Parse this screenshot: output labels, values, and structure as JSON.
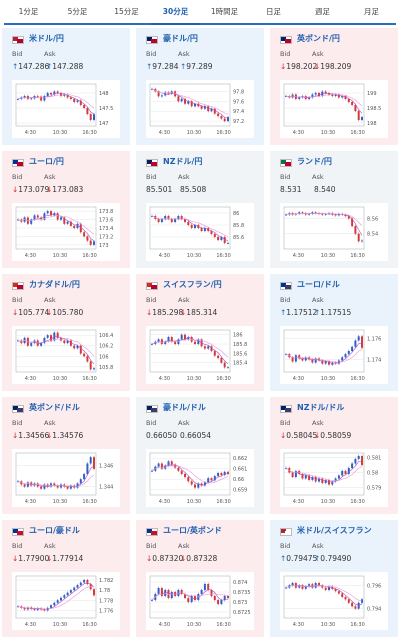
{
  "tabs": [
    {
      "label": "1分足",
      "active": false
    },
    {
      "label": "5分足",
      "active": false
    },
    {
      "label": "15分足",
      "active": false
    },
    {
      "label": "30分足",
      "active": true
    },
    {
      "label": "1時間足",
      "active": false
    },
    {
      "label": "日足",
      "active": false
    },
    {
      "label": "週足",
      "active": false
    },
    {
      "label": "月足",
      "active": false
    }
  ],
  "labels": {
    "bid": "Bid",
    "ask": "Ask"
  },
  "colors": {
    "accent": "#1f5fb0",
    "up_bg": "#eaf3fb",
    "down_bg": "#fdecee",
    "flat_bg": "#f1f4f6",
    "up_arrow": "#1f5fb0",
    "down_arrow": "#cc2a2a"
  },
  "cards": [
    {
      "pair": "米ドル/円",
      "flag": "us-jp",
      "trend": "up",
      "bid": "147.286",
      "ask": "147.288",
      "chart_data": {
        "type": "line",
        "x_ticks": [
          "4:30",
          "10:30",
          "16:30"
        ],
        "y_ticks": [
          "148",
          "147.5",
          "147"
        ],
        "y_range": [
          146.9,
          148.3
        ],
        "values": [
          147.8,
          147.85,
          147.9,
          147.8,
          147.82,
          147.9,
          147.88,
          147.75,
          147.9,
          148.0,
          147.95,
          148.05,
          148.0,
          147.9,
          147.95,
          147.85,
          147.8,
          147.7,
          147.75,
          147.6,
          147.5,
          147.3,
          147.1,
          147.29
        ]
      }
    },
    {
      "pair": "豪ドル/円",
      "flag": "au-jp",
      "trend": "up",
      "bid": "97.284",
      "ask": "97.289",
      "chart_data": {
        "type": "line",
        "x_ticks": [
          "4:30",
          "10:30",
          "16:30"
        ],
        "y_ticks": [
          "97.8",
          "97.6",
          "97.4",
          "97.2"
        ],
        "y_range": [
          97.1,
          97.95
        ],
        "values": [
          97.85,
          97.8,
          97.7,
          97.72,
          97.78,
          97.75,
          97.8,
          97.7,
          97.6,
          97.65,
          97.55,
          97.6,
          97.5,
          97.55,
          97.5,
          97.45,
          97.5,
          97.4,
          97.45,
          97.35,
          97.3,
          97.25,
          97.2,
          97.28
        ]
      }
    },
    {
      "pair": "英ポンド/円",
      "flag": "gb-jp",
      "trend": "down",
      "bid": "198.202",
      "ask": "198.209",
      "chart_data": {
        "type": "line",
        "x_ticks": [
          "4:30",
          "10:30",
          "16:30"
        ],
        "y_ticks": [
          "199",
          "198.5",
          "198"
        ],
        "y_range": [
          197.9,
          199.3
        ],
        "values": [
          198.9,
          198.85,
          198.95,
          198.8,
          198.85,
          198.9,
          198.8,
          198.85,
          198.95,
          199.0,
          198.9,
          199.05,
          199.0,
          198.95,
          198.9,
          198.95,
          198.85,
          198.9,
          198.8,
          198.7,
          198.6,
          198.4,
          198.1,
          198.2
        ]
      }
    },
    {
      "pair": "ユーロ/円",
      "flag": "eu-jp",
      "trend": "down",
      "bid": "173.079",
      "ask": "173.083",
      "chart_data": {
        "type": "line",
        "x_ticks": [
          "4:30",
          "10:30",
          "16:30"
        ],
        "y_ticks": [
          "173.8",
          "173.6",
          "173.4",
          "173.2",
          "173"
        ],
        "y_range": [
          172.9,
          173.9
        ],
        "values": [
          173.6,
          173.55,
          173.65,
          173.5,
          173.6,
          173.7,
          173.65,
          173.6,
          173.75,
          173.8,
          173.7,
          173.75,
          173.6,
          173.65,
          173.5,
          173.55,
          173.45,
          173.4,
          173.5,
          173.3,
          173.2,
          173.1,
          173.0,
          173.08
        ]
      }
    },
    {
      "pair": "NZドル/円",
      "flag": "nz-jp",
      "trend": "flat",
      "bid": "85.501",
      "ask": "85.508",
      "chart_data": {
        "type": "line",
        "x_ticks": [
          "4:30",
          "10:30",
          "16:30"
        ],
        "y_ticks": [
          "86",
          "85.8",
          "85.6"
        ],
        "y_range": [
          85.4,
          86.1
        ],
        "values": [
          85.95,
          85.9,
          85.85,
          85.9,
          85.95,
          85.9,
          85.85,
          85.9,
          85.95,
          85.9,
          85.85,
          85.8,
          85.75,
          85.8,
          85.75,
          85.7,
          85.75,
          85.7,
          85.65,
          85.6,
          85.55,
          85.6,
          85.5,
          85.5
        ]
      }
    },
    {
      "pair": "ランド/円",
      "flag": "za-jp",
      "trend": "flat",
      "bid": "8.531",
      "ask": "8.540",
      "chart_data": {
        "type": "line",
        "x_ticks": [
          "4:30",
          "10:30",
          "16:30"
        ],
        "y_ticks": [
          "8.56",
          "8.54"
        ],
        "y_range": [
          8.52,
          8.575
        ],
        "values": [
          8.565,
          8.567,
          8.565,
          8.566,
          8.568,
          8.567,
          8.565,
          8.566,
          8.568,
          8.567,
          8.566,
          8.565,
          8.566,
          8.567,
          8.565,
          8.564,
          8.566,
          8.565,
          8.563,
          8.56,
          8.55,
          8.54,
          8.53,
          8.531
        ]
      }
    },
    {
      "pair": "カナダドル/円",
      "flag": "ca-jp",
      "trend": "down",
      "bid": "105.774",
      "ask": "105.780",
      "chart_data": {
        "type": "line",
        "x_ticks": [
          "4:30",
          "10:30",
          "16:30"
        ],
        "y_ticks": [
          "106.4",
          "106.2",
          "106",
          "105.8"
        ],
        "y_range": [
          105.7,
          106.5
        ],
        "values": [
          106.3,
          106.25,
          106.35,
          106.2,
          106.25,
          106.3,
          106.2,
          106.25,
          106.35,
          106.4,
          106.3,
          106.45,
          106.35,
          106.3,
          106.25,
          106.3,
          106.2,
          106.15,
          106.2,
          106.05,
          106.0,
          105.9,
          105.75,
          105.77
        ]
      }
    },
    {
      "pair": "スイスフラン/円",
      "flag": "ch-jp",
      "trend": "down",
      "bid": "185.298",
      "ask": "185.314",
      "chart_data": {
        "type": "line",
        "x_ticks": [
          "4:30",
          "10:30",
          "16:30"
        ],
        "y_ticks": [
          "186",
          "185.8",
          "185.6",
          "185.4"
        ],
        "y_range": [
          185.2,
          186.1
        ],
        "values": [
          185.8,
          185.85,
          185.9,
          185.8,
          185.85,
          185.95,
          185.85,
          185.8,
          185.9,
          186.0,
          185.9,
          185.95,
          185.85,
          185.8,
          185.9,
          185.75,
          185.7,
          185.75,
          185.65,
          185.55,
          185.5,
          185.4,
          185.3,
          185.3
        ]
      }
    },
    {
      "pair": "ユーロ/ドル",
      "flag": "eu-us",
      "trend": "up",
      "bid": "1.17512",
      "ask": "1.17515",
      "chart_data": {
        "type": "line",
        "x_ticks": [
          "4:30",
          "10:30",
          "16:30"
        ],
        "y_ticks": [
          "1.176",
          "1.174"
        ],
        "y_range": [
          1.1728,
          1.1768
        ],
        "values": [
          1.1745,
          1.1742,
          1.1738,
          1.1744,
          1.1741,
          1.1739,
          1.1742,
          1.174,
          1.1737,
          1.1741,
          1.1739,
          1.1736,
          1.1738,
          1.1735,
          1.1737,
          1.1736,
          1.1739,
          1.1742,
          1.1745,
          1.1748,
          1.1752,
          1.1758,
          1.1762,
          1.1751
        ]
      }
    },
    {
      "pair": "英ポンド/ドル",
      "flag": "gb-us",
      "trend": "down",
      "bid": "1.34566",
      "ask": "1.34576",
      "chart_data": {
        "type": "line",
        "x_ticks": [
          "4:30",
          "10:30",
          "16:30"
        ],
        "y_ticks": [
          "1.346",
          "1.344"
        ],
        "y_range": [
          1.3432,
          1.3472
        ],
        "values": [
          1.3445,
          1.3442,
          1.344,
          1.3444,
          1.3441,
          1.3443,
          1.344,
          1.3438,
          1.3442,
          1.344,
          1.3443,
          1.3441,
          1.3439,
          1.3442,
          1.344,
          1.3438,
          1.3441,
          1.3439,
          1.3443,
          1.3447,
          1.3452,
          1.3462,
          1.3468,
          1.3457
        ]
      }
    },
    {
      "pair": "豪ドル/ドル",
      "flag": "au-us",
      "trend": "flat",
      "bid": "0.66050",
      "ask": "0.66054",
      "chart_data": {
        "type": "line",
        "x_ticks": [
          "4:30",
          "10:30",
          "16:30"
        ],
        "y_ticks": [
          "0.662",
          "0.661",
          "0.66",
          "0.659"
        ],
        "y_range": [
          0.6585,
          0.6625
        ],
        "values": [
          0.6608,
          0.6612,
          0.6615,
          0.661,
          0.6613,
          0.6617,
          0.6614,
          0.6611,
          0.6608,
          0.6605,
          0.6602,
          0.6598,
          0.6595,
          0.6592,
          0.6596,
          0.6594,
          0.6597,
          0.6601,
          0.6599,
          0.6603,
          0.6606,
          0.6604,
          0.6607,
          0.6605
        ]
      }
    },
    {
      "pair": "NZドル/ドル",
      "flag": "nz-us",
      "trend": "down",
      "bid": "0.58045",
      "ask": "0.58059",
      "chart_data": {
        "type": "line",
        "x_ticks": [
          "4:30",
          "10:30",
          "16:30"
        ],
        "y_ticks": [
          "0.581",
          "0.58",
          "0.579"
        ],
        "y_range": [
          0.5785,
          0.5813
        ],
        "values": [
          0.5803,
          0.58,
          0.5797,
          0.5801,
          0.5799,
          0.5796,
          0.5798,
          0.5795,
          0.5797,
          0.5794,
          0.5796,
          0.5793,
          0.5795,
          0.5792,
          0.5794,
          0.5796,
          0.5798,
          0.5801,
          0.5799,
          0.5803,
          0.5806,
          0.5809,
          0.5811,
          0.5805
        ]
      }
    },
    {
      "pair": "ユーロ/豪ドル",
      "flag": "eu-au",
      "trend": "down",
      "bid": "1.77900",
      "ask": "1.77914",
      "chart_data": {
        "type": "line",
        "x_ticks": [
          "4:30",
          "10:30",
          "16:30"
        ],
        "y_ticks": [
          "1.782",
          "1.78",
          "1.778",
          "1.776"
        ],
        "y_range": [
          1.7745,
          1.7828
        ],
        "values": [
          1.7768,
          1.7765,
          1.7762,
          1.7766,
          1.7763,
          1.7761,
          1.7764,
          1.7762,
          1.776,
          1.7765,
          1.777,
          1.7775,
          1.778,
          1.7785,
          1.779,
          1.7795,
          1.78,
          1.7805,
          1.781,
          1.7815,
          1.782,
          1.7812,
          1.7802,
          1.779
        ]
      }
    },
    {
      "pair": "ユーロ/英ポンド",
      "flag": "eu-gb",
      "trend": "down",
      "bid": "0.87320",
      "ask": "0.87328",
      "chart_data": {
        "type": "line",
        "x_ticks": [
          "4:30",
          "10:30",
          "16:30"
        ],
        "y_ticks": [
          "0.874",
          "0.8735",
          "0.873",
          "0.8725"
        ],
        "y_range": [
          0.8722,
          0.8743
        ],
        "values": [
          0.8731,
          0.8734,
          0.8737,
          0.8733,
          0.8736,
          0.8732,
          0.8735,
          0.8733,
          0.8736,
          0.8734,
          0.8732,
          0.873,
          0.8733,
          0.8731,
          0.8734,
          0.8736,
          0.8739,
          0.8736,
          0.8733,
          0.8731,
          0.8729,
          0.8731,
          0.8733,
          0.8732
        ]
      }
    },
    {
      "pair": "米ドル/スイスフラン",
      "flag": "us-ch",
      "trend": "up",
      "bid": "0.79475",
      "ask": "0.79490",
      "chart_data": {
        "type": "line",
        "x_ticks": [
          "4:30",
          "10:30",
          "16:30"
        ],
        "y_ticks": [
          "0.796",
          "0.794"
        ],
        "y_range": [
          0.7932,
          0.7968
        ],
        "values": [
          0.7958,
          0.796,
          0.7962,
          0.7958,
          0.796,
          0.7957,
          0.7959,
          0.7961,
          0.7958,
          0.7962,
          0.796,
          0.7958,
          0.7956,
          0.7959,
          0.7957,
          0.7955,
          0.7953,
          0.795,
          0.7948,
          0.7945,
          0.7942,
          0.794,
          0.7945,
          0.7948
        ]
      }
    }
  ]
}
